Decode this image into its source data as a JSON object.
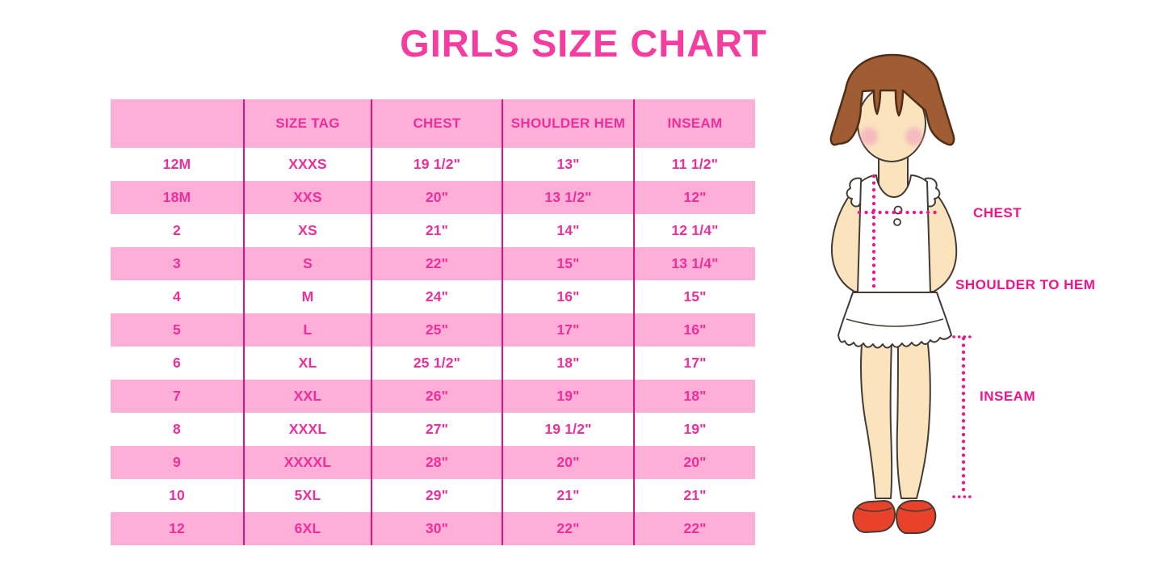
{
  "title": "GIRLS SIZE CHART",
  "chart_data": {
    "type": "table",
    "title": "GIRLS SIZE CHART",
    "columns": [
      "",
      "SIZE TAG",
      "CHEST",
      "SHOULDER HEM",
      "INSEAM"
    ],
    "rows": [
      [
        "12M",
        "XXXS",
        "19 1/2\"",
        "13\"",
        "11 1/2\""
      ],
      [
        "18M",
        "XXS",
        "20\"",
        "13 1/2\"",
        "12\""
      ],
      [
        "2",
        "XS",
        "21\"",
        "14\"",
        "12 1/4\""
      ],
      [
        "3",
        "S",
        "22\"",
        "15\"",
        "13 1/4\""
      ],
      [
        "4",
        "M",
        "24\"",
        "16\"",
        "15\""
      ],
      [
        "5",
        "L",
        "25\"",
        "17\"",
        "16\""
      ],
      [
        "6",
        "XL",
        "25 1/2\"",
        "18\"",
        "17\""
      ],
      [
        "7",
        "XXL",
        "26\"",
        "19\"",
        "18\""
      ],
      [
        "8",
        "XXXL",
        "27\"",
        "19 1/2\"",
        "19\""
      ],
      [
        "9",
        "XXXXL",
        "28\"",
        "20\"",
        "20\""
      ],
      [
        "10",
        "5XL",
        "29\"",
        "21\"",
        "21\""
      ],
      [
        "12",
        "6XL",
        "30\"",
        "22\"",
        "22\""
      ]
    ],
    "row_striping": "header pink, then alternating white/pink",
    "legend_position": "none",
    "grid": "vertical pink dividers only"
  },
  "diagram": {
    "chest_label": "CHEST",
    "shoulder_to_hem_label": "SHOULDER TO HEM",
    "inseam_label": "INSEAM"
  },
  "colors": {
    "title_pink": "#F43D9E",
    "table_text_pink": "#EE2E9A",
    "row_pink": "#FDAFD8",
    "divider_pink": "#E3117F",
    "measure_pink": "#F0148C",
    "hair_brown": "#A05D33",
    "hair_outline": "#4F2F17",
    "skin": "#FBE3BE",
    "blush": "#F3A9BE",
    "shoe_red": "#E8422A",
    "outline": "#433C35"
  }
}
